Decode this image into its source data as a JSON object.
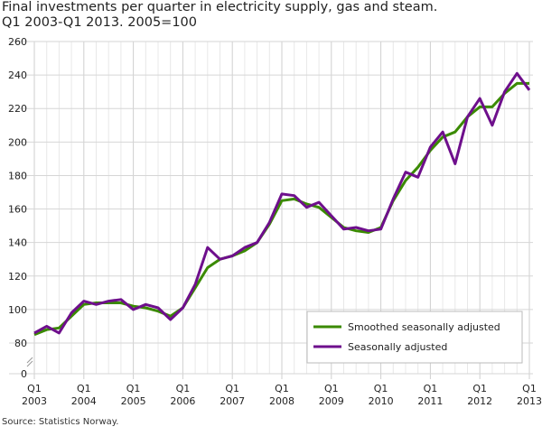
{
  "chart_data": {
    "type": "line",
    "title": "Final investments per quarter in electricity supply, gas and steam.",
    "subtitle": "Q1 2003-Q1 2013. 2005=100",
    "source": "Source: Statistics Norway.",
    "x_tick_labels": [
      [
        "Q1",
        "2003"
      ],
      [
        "Q1",
        "2004"
      ],
      [
        "Q1",
        "2005"
      ],
      [
        "Q1",
        "2006"
      ],
      [
        "Q1",
        "2007"
      ],
      [
        "Q1",
        "2008"
      ],
      [
        "Q1",
        "2009"
      ],
      [
        "Q1",
        "2010"
      ],
      [
        "Q1",
        "2011"
      ],
      [
        "Q1",
        "2012"
      ],
      [
        "Q1",
        "2013"
      ]
    ],
    "x_start": "2003Q1",
    "x_end": "2013Q1",
    "y_ticks": [
      0,
      80,
      100,
      120,
      140,
      160,
      180,
      200,
      220,
      240,
      260
    ],
    "ylim": [
      0,
      260
    ],
    "y_axis_break": [
      0,
      80
    ],
    "grid": true,
    "legend_position": "bottom-right",
    "series": [
      {
        "name": "Smoothed seasonally adjusted",
        "color": "#3a8a00",
        "values": [
          85,
          88,
          89,
          96,
          103,
          104,
          104,
          104,
          102,
          101,
          99,
          96,
          101,
          113,
          125,
          130,
          132,
          135,
          140,
          151,
          165,
          166,
          163,
          161,
          155,
          149,
          147,
          146,
          149,
          165,
          177,
          185,
          195,
          203,
          206,
          215,
          221,
          221,
          229,
          235,
          235
        ]
      },
      {
        "name": "Seasonally adjusted",
        "color": "#6e0f8c",
        "values": [
          86,
          90,
          86,
          98,
          105,
          103,
          105,
          106,
          100,
          103,
          101,
          94,
          101,
          115,
          137,
          130,
          132,
          137,
          140,
          152,
          169,
          168,
          161,
          164,
          156,
          148,
          149,
          147,
          148,
          166,
          182,
          179,
          197,
          206,
          187,
          215,
          226,
          210,
          230,
          241,
          231
        ]
      }
    ]
  }
}
